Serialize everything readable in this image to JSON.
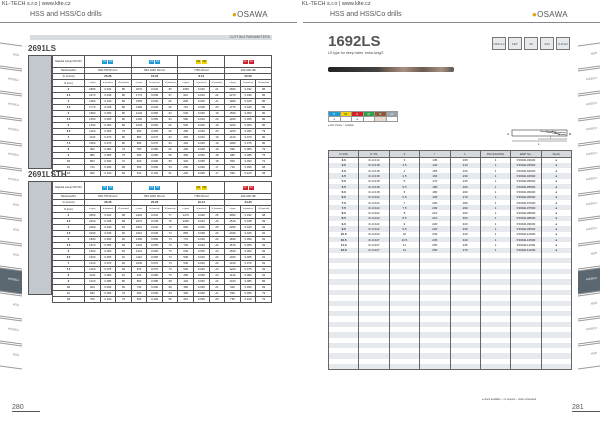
{
  "header": {
    "company": "KL-TECH s.r.o | www.klte.cz",
    "section": "HSS and HSS/Co drills",
    "brand": "OSAWA"
  },
  "left": {
    "page_number": "280",
    "bar_label": "CUTTING PARAMETERS",
    "tabs": [
      "HSS",
      "HSS/Co",
      "HSS/Co",
      "HSS/Co",
      "HSS/Co",
      "HSS/Co",
      "HSS",
      "HSS",
      "HSS",
      "HSS/Co",
      "HSS",
      "HSS/Co",
      "HSS"
    ],
    "active_tab": 9,
    "labels": {
      "material": "Material Group ISO 513",
      "hardness": "Hardness/Rm",
      "vc": "Vc (m/min)",
      "d": "D (mm)",
      "n": "n (rpm)",
      "fz": "fz (mm/rev)",
      "vf": "Vf (mm/min)"
    },
    "tables": [
      {
        "title": "2691LS",
        "groups": [
          {
            "badges": [
              "P1",
              "P2"
            ],
            "color": "#1e9ad6",
            "hardness": "500-750 N/mm²",
            "vc": "20-26"
          },
          {
            "badges": [
              "P3",
              "P4"
            ],
            "color": "#1e9ad6",
            "hardness": "650-1000 N/mm²",
            "vc": "16-20"
          },
          {
            "badges": [
              "M1",
              "M2"
            ],
            "color": "#f2d500",
            "hardness": "<750 N/mm²",
            "vc": "8-12"
          },
          {
            "badges": [
              "K1",
              "K2"
            ],
            "color": "#d0202a",
            "hardness": "100-200 HB",
            "vc": "20-26"
          }
        ],
        "rows": [
          [
            "3",
            "2650",
            "0.032",
            "85",
            "2070",
            "0.032",
            "66",
            "1060",
            "0.020",
            "21",
            "2650",
            "0.032",
            "85"
          ],
          [
            "3.5",
            "2270",
            "0.038",
            "86",
            "1770",
            "0.038",
            "67",
            "910",
            "0.024",
            "22",
            "2270",
            "0.038",
            "86"
          ],
          [
            "4",
            "1990",
            "0.040",
            "80",
            "1550",
            "0.040",
            "62",
            "800",
            "0.026",
            "21",
            "1990",
            "0.040",
            "80"
          ],
          [
            "4.5",
            "1770",
            "0.045",
            "80",
            "1380",
            "0.045",
            "62",
            "710",
            "0.028",
            "20",
            "1770",
            "0.045",
            "80"
          ],
          [
            "5",
            "1590",
            "0.050",
            "80",
            "1240",
            "0.050",
            "62",
            "640",
            "0.030",
            "19",
            "1590",
            "0.050",
            "80"
          ],
          [
            "5.5",
            "1450",
            "0.055",
            "80",
            "1130",
            "0.055",
            "62",
            "580",
            "0.034",
            "20",
            "1450",
            "0.055",
            "80"
          ],
          [
            "6",
            "1330",
            "0.060",
            "80",
            "1030",
            "0.060",
            "62",
            "530",
            "0.036",
            "19",
            "1330",
            "0.060",
            "80"
          ],
          [
            "6.5",
            "1220",
            "0.065",
            "79",
            "950",
            "0.065",
            "62",
            "490",
            "0.040",
            "20",
            "1220",
            "0.065",
            "79"
          ],
          [
            "7",
            "1140",
            "0.070",
            "80",
            "880",
            "0.070",
            "62",
            "450",
            "0.042",
            "19",
            "1140",
            "0.070",
            "80"
          ],
          [
            "7.5",
            "1060",
            "0.075",
            "80",
            "830",
            "0.075",
            "62",
            "420",
            "0.045",
            "19",
            "1060",
            "0.075",
            "80"
          ],
          [
            "8",
            "990",
            "0.080",
            "79",
            "780",
            "0.080",
            "62",
            "400",
            "0.048",
            "19",
            "990",
            "0.080",
            "79"
          ],
          [
            "9",
            "880",
            "0.085",
            "75",
            "690",
            "0.085",
            "59",
            "350",
            "0.052",
            "18",
            "880",
            "0.085",
            "75"
          ],
          [
            "10",
            "800",
            "0.090",
            "72",
            "620",
            "0.090",
            "56",
            "320",
            "0.056",
            "18",
            "800",
            "0.090",
            "72"
          ],
          [
            "11",
            "720",
            "0.095",
            "68",
            "560",
            "0.095",
            "53",
            "290",
            "0.060",
            "17",
            "720",
            "0.095",
            "68"
          ],
          [
            "12",
            "660",
            "0.100",
            "66",
            "510",
            "0.100",
            "51",
            "260",
            "0.065",
            "17",
            "660",
            "0.100",
            "66"
          ]
        ]
      },
      {
        "title": "2691LSTH",
        "groups": [
          {
            "badges": [
              "P1",
              "P2"
            ],
            "color": "#1e9ad6",
            "hardness": "500-750 N/mm²",
            "vc": "26-30"
          },
          {
            "badges": [
              "P3",
              "P4"
            ],
            "color": "#1e9ad6",
            "hardness": "650-1000 N/mm²",
            "vc": "20-26"
          },
          {
            "badges": [
              "M1",
              "M2"
            ],
            "color": "#f2d500",
            "hardness": "<750 N/mm²",
            "vc": "10-14"
          },
          {
            "badges": [
              "K1",
              "K2"
            ],
            "color": "#d0202a",
            "hardness": "100-200 HB",
            "vc": "24-30"
          }
        ],
        "rows": [
          [
            "3",
            "3050",
            "0.032",
            "98",
            "2420",
            "0.032",
            "77",
            "1270",
            "0.020",
            "25",
            "3050",
            "0.032",
            "98"
          ],
          [
            "3.5",
            "2610",
            "0.038",
            "99",
            "2070",
            "0.038",
            "79",
            "1090",
            "0.024",
            "26",
            "2610",
            "0.038",
            "99"
          ],
          [
            "4",
            "2290",
            "0.040",
            "92",
            "1810",
            "0.040",
            "72",
            "960",
            "0.026",
            "25",
            "2290",
            "0.040",
            "92"
          ],
          [
            "4.5",
            "2040",
            "0.045",
            "92",
            "1610",
            "0.045",
            "72",
            "850",
            "0.028",
            "24",
            "2040",
            "0.045",
            "92"
          ],
          [
            "5",
            "1830",
            "0.050",
            "92",
            "1450",
            "0.050",
            "73",
            "770",
            "0.030",
            "23",
            "1830",
            "0.050",
            "92"
          ],
          [
            "5.5",
            "1670",
            "0.055",
            "92",
            "1320",
            "0.055",
            "73",
            "700",
            "0.034",
            "24",
            "1670",
            "0.055",
            "92"
          ],
          [
            "6",
            "1530",
            "0.060",
            "92",
            "1210",
            "0.060",
            "73",
            "640",
            "0.036",
            "23",
            "1530",
            "0.060",
            "92"
          ],
          [
            "6.5",
            "1400",
            "0.065",
            "91",
            "1110",
            "0.065",
            "72",
            "590",
            "0.040",
            "24",
            "1400",
            "0.065",
            "91"
          ],
          [
            "7",
            "1310",
            "0.070",
            "92",
            "1040",
            "0.070",
            "73",
            "540",
            "0.042",
            "23",
            "1310",
            "0.070",
            "92"
          ],
          [
            "7.5",
            "1220",
            "0.075",
            "92",
            "970",
            "0.075",
            "73",
            "500",
            "0.045",
            "23",
            "1220",
            "0.075",
            "92"
          ],
          [
            "8",
            "1140",
            "0.080",
            "91",
            "910",
            "0.080",
            "73",
            "480",
            "0.048",
            "23",
            "1140",
            "0.080",
            "91"
          ],
          [
            "9",
            "1010",
            "0.085",
            "86",
            "800",
            "0.085",
            "68",
            "420",
            "0.052",
            "22",
            "1010",
            "0.085",
            "86"
          ],
          [
            "10",
            "920",
            "0.090",
            "83",
            "730",
            "0.090",
            "66",
            "380",
            "0.056",
            "21",
            "920",
            "0.090",
            "83"
          ],
          [
            "11",
            "830",
            "0.095",
            "79",
            "660",
            "0.095",
            "63",
            "350",
            "0.060",
            "21",
            "830",
            "0.095",
            "79"
          ],
          [
            "12",
            "760",
            "0.100",
            "76",
            "600",
            "0.100",
            "60",
            "310",
            "0.065",
            "20",
            "760",
            "0.100",
            "76"
          ]
        ]
      }
    ]
  },
  "right": {
    "page_number": "281",
    "title": "1692LS",
    "subtitle": "LS type for deep holes, extra-long/2",
    "icons": [
      "HSS-Co",
      "130°",
      "h8",
      "3xD",
      "S-Point"
    ],
    "materials": [
      {
        "code": "P",
        "color": "#1e9ad6",
        "mark": "●"
      },
      {
        "code": "M",
        "color": "#f2d500",
        "mark": ""
      },
      {
        "code": "K",
        "color": "#d0202a",
        "mark": "●"
      },
      {
        "code": "N",
        "color": "#2ea04a",
        "mark": ""
      },
      {
        "code": "S",
        "color": "#8a5a3a",
        "mark": ""
      },
      {
        "code": "H",
        "color": "#9aa2aa",
        "mark": ""
      }
    ],
    "material_legend": "● first choice   ○ suitable",
    "diagram_labels": {
      "d": "d",
      "D": "D",
      "l": "l",
      "L": "L"
    },
    "columns": [
      "D (h8)",
      "D Tol.",
      "d",
      "l",
      "L",
      "PACKAGING",
      "EDP No.",
      "Stock"
    ],
    "rows": [
      [
        "3.0",
        "0/-0.014",
        "3",
        "135",
        "195",
        "1",
        "P1692L03000",
        "●"
      ],
      [
        "3.5",
        "0/-0.018",
        "3.5",
        "140",
        "210",
        "1",
        "P1692L03500",
        "●"
      ],
      [
        "4.0",
        "0/-0.018",
        "4",
        "155",
        "220",
        "1",
        "P1692L04000",
        "●"
      ],
      [
        "4.5",
        "0/-0.018",
        "4.5",
        "160",
        "230",
        "1",
        "P1692L04500",
        "●"
      ],
      [
        "5.0",
        "0/-0.018",
        "5",
        "170",
        "245",
        "1",
        "P1692L05000",
        "●"
      ],
      [
        "5.5",
        "0/-0.018",
        "5.5",
        "180",
        "260",
        "1",
        "P1692L05500",
        "●"
      ],
      [
        "6.0",
        "0/-0.018",
        "6",
        "180",
        "260",
        "1",
        "P1692L06000",
        "●"
      ],
      [
        "6.5",
        "0/-0.022",
        "6.5",
        "195",
        "270",
        "1",
        "P1692L06500",
        "●"
      ],
      [
        "7.0",
        "0/-0.022",
        "7",
        "200",
        "280",
        "1",
        "P1692L07000",
        "●"
      ],
      [
        "7.5",
        "0/-0.022",
        "7.5",
        "200",
        "290",
        "1",
        "P1692L07500",
        "●"
      ],
      [
        "8.0",
        "0/-0.022",
        "8",
        "210",
        "300",
        "1",
        "P1692L08000",
        "●"
      ],
      [
        "8.5",
        "0/-0.022",
        "8.5",
        "210",
        "300",
        "1",
        "P1692L08500",
        "●"
      ],
      [
        "9.0",
        "0/-0.022",
        "9",
        "220",
        "320",
        "1",
        "P1692L09000",
        "●"
      ],
      [
        "9.5",
        "0/-0.022",
        "9.5",
        "220",
        "330",
        "1",
        "P1692L09500",
        "●"
      ],
      [
        "10.0",
        "0/-0.022",
        "10",
        "230",
        "340",
        "1",
        "P1692L10000",
        "●"
      ],
      [
        "10.5",
        "0/-0.027",
        "10.5",
        "235",
        "340",
        "1",
        "P1692L10500",
        "●"
      ],
      [
        "11.0",
        "0/-0.027",
        "11",
        "250",
        "345",
        "1",
        "P1692L11000",
        "●"
      ],
      [
        "12.0",
        "0/-0.027",
        "12",
        "250",
        "370",
        "1",
        "P1692L12000",
        "●"
      ]
    ],
    "footer_legend": "● stock available   ○ on request   – stock exhausted",
    "tabs": [
      "HSS",
      "HSS/Co",
      "HSS/Co",
      "HSS/Co",
      "HSS/Co",
      "HSS/Co",
      "HSS/Co",
      "HSS/Co",
      "HSS",
      "HSS/Co",
      "HSS",
      "HSS/Co",
      "HSS"
    ],
    "active_tab": 9
  }
}
